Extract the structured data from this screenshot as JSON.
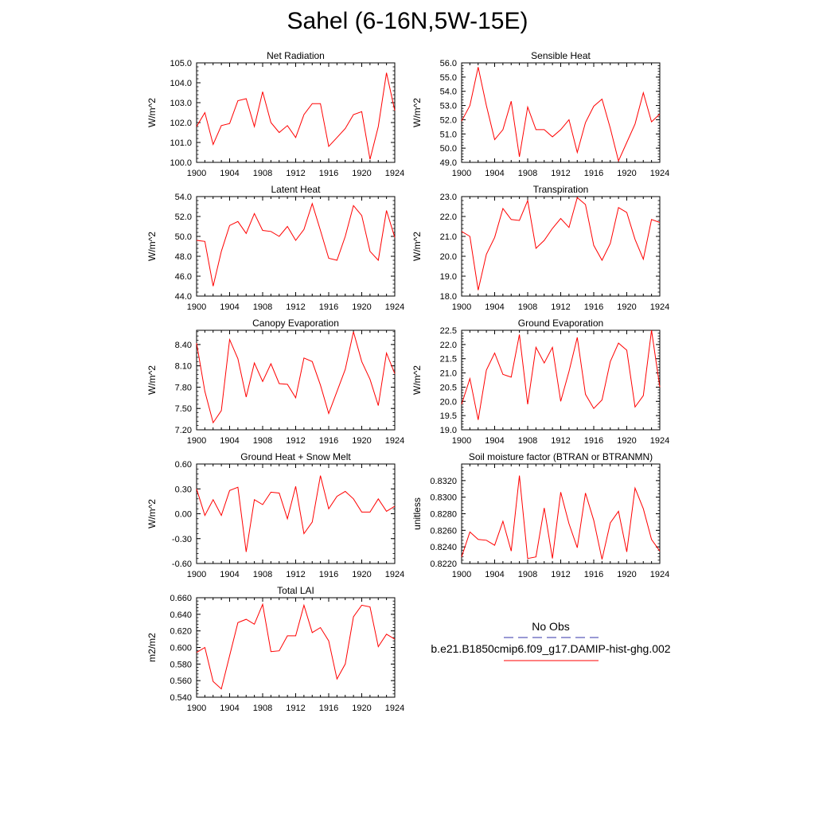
{
  "title": "Sahel (6-16N,5W-15E)",
  "legend": {
    "obs_label": "No Obs",
    "obs_color": "#3333aa",
    "model_label": "b.e21.B1850cmip6.f09_g17.DAMIP-hist-ghg.002",
    "model_color": "#ff0000"
  },
  "x_ticks": [
    "1900",
    "1904",
    "1908",
    "1912",
    "1916",
    "1920",
    "1924"
  ],
  "chart_data": [
    {
      "type": "line",
      "title": "Net Radiation",
      "ylabel": "W/m^2",
      "xlim": [
        1900,
        1924
      ],
      "ylim": [
        100.0,
        105.0
      ],
      "y_ticks": [
        "100.0",
        "101.0",
        "102.0",
        "103.0",
        "104.0",
        "105.0"
      ],
      "x": [
        1900,
        1901,
        1902,
        1903,
        1904,
        1905,
        1906,
        1907,
        1908,
        1909,
        1910,
        1911,
        1912,
        1913,
        1914,
        1915,
        1916,
        1917,
        1918,
        1919,
        1920,
        1921,
        1922,
        1923,
        1924
      ],
      "series": [
        {
          "name": "b.e21.B1850cmip6.f09_g17.DAMIP-hist-ghg.002",
          "values": [
            101.8,
            102.5,
            100.9,
            101.85,
            101.95,
            103.1,
            103.2,
            101.8,
            103.55,
            102.0,
            101.5,
            101.85,
            101.25,
            102.4,
            102.95,
            102.95,
            100.8,
            101.25,
            101.7,
            102.4,
            102.55,
            100.15,
            101.8,
            104.5,
            102.6
          ]
        }
      ]
    },
    {
      "type": "line",
      "title": "Sensible Heat",
      "ylabel": "W/m^2",
      "xlim": [
        1900,
        1924
      ],
      "ylim": [
        49.0,
        56.0
      ],
      "y_ticks": [
        "49.0",
        "50.0",
        "51.0",
        "52.0",
        "53.0",
        "54.0",
        "55.0",
        "56.0"
      ],
      "x": [
        1900,
        1901,
        1902,
        1903,
        1904,
        1905,
        1906,
        1907,
        1908,
        1909,
        1910,
        1911,
        1912,
        1913,
        1914,
        1915,
        1916,
        1917,
        1918,
        1919,
        1920,
        1921,
        1922,
        1923,
        1924
      ],
      "series": [
        {
          "name": "b.e21.B1850cmip6.f09_g17.DAMIP-hist-ghg.002",
          "values": [
            51.9,
            53.0,
            55.7,
            53.0,
            50.6,
            51.3,
            53.3,
            49.4,
            52.9,
            51.3,
            51.3,
            50.8,
            51.3,
            52.0,
            49.7,
            51.8,
            52.95,
            53.45,
            51.4,
            49.1,
            50.4,
            51.7,
            53.9,
            51.85,
            52.4
          ]
        }
      ]
    },
    {
      "type": "line",
      "title": "Latent Heat",
      "ylabel": "W/m^2",
      "xlim": [
        1900,
        1924
      ],
      "ylim": [
        44.0,
        54.0
      ],
      "y_ticks": [
        "44.0",
        "46.0",
        "48.0",
        "50.0",
        "52.0",
        "54.0"
      ],
      "x": [
        1900,
        1901,
        1902,
        1903,
        1904,
        1905,
        1906,
        1907,
        1908,
        1909,
        1910,
        1911,
        1912,
        1913,
        1914,
        1915,
        1916,
        1917,
        1918,
        1919,
        1920,
        1921,
        1922,
        1923,
        1924
      ],
      "series": [
        {
          "name": "b.e21.B1850cmip6.f09_g17.DAMIP-hist-ghg.002",
          "values": [
            49.6,
            49.5,
            45.0,
            48.5,
            51.1,
            51.5,
            50.3,
            52.3,
            50.6,
            50.5,
            50.0,
            51.0,
            49.6,
            50.7,
            53.3,
            50.6,
            47.8,
            47.6,
            50.0,
            53.1,
            52.1,
            48.5,
            47.6,
            52.6,
            49.9
          ]
        }
      ]
    },
    {
      "type": "line",
      "title": "Transpiration",
      "ylabel": "W/m^2",
      "xlim": [
        1900,
        1924
      ],
      "ylim": [
        18.0,
        23.0
      ],
      "y_ticks": [
        "18.0",
        "19.0",
        "20.0",
        "21.0",
        "22.0",
        "23.0"
      ],
      "x": [
        1900,
        1901,
        1902,
        1903,
        1904,
        1905,
        1906,
        1907,
        1908,
        1909,
        1910,
        1911,
        1912,
        1913,
        1914,
        1915,
        1916,
        1917,
        1918,
        1919,
        1920,
        1921,
        1922,
        1923,
        1924
      ],
      "series": [
        {
          "name": "b.e21.B1850cmip6.f09_g17.DAMIP-hist-ghg.002",
          "values": [
            21.25,
            21.0,
            18.3,
            20.1,
            20.95,
            22.4,
            21.85,
            21.8,
            22.8,
            20.4,
            20.8,
            21.4,
            21.9,
            21.45,
            22.95,
            22.6,
            20.55,
            19.8,
            20.65,
            22.45,
            22.2,
            20.85,
            19.85,
            21.85,
            21.7
          ]
        }
      ]
    },
    {
      "type": "line",
      "title": "Canopy Evaporation",
      "ylabel": "W/m^2",
      "xlim": [
        1900,
        1924
      ],
      "ylim": [
        7.2,
        8.6
      ],
      "y_ticks": [
        "7.20",
        "7.50",
        "7.80",
        "8.10",
        "8.40"
      ],
      "x": [
        1900,
        1901,
        1902,
        1903,
        1904,
        1905,
        1906,
        1907,
        1908,
        1909,
        1910,
        1911,
        1912,
        1913,
        1914,
        1915,
        1916,
        1917,
        1918,
        1919,
        1920,
        1921,
        1922,
        1923,
        1924
      ],
      "series": [
        {
          "name": "b.e21.B1850cmip6.f09_g17.DAMIP-hist-ghg.002",
          "values": [
            8.42,
            7.74,
            7.3,
            7.47,
            8.47,
            8.2,
            7.66,
            8.14,
            7.88,
            8.13,
            7.85,
            7.84,
            7.65,
            8.21,
            8.16,
            7.83,
            7.43,
            7.74,
            8.05,
            8.58,
            8.16,
            7.91,
            7.54,
            8.28,
            7.99
          ]
        }
      ]
    },
    {
      "type": "line",
      "title": "Ground Evaporation",
      "ylabel": "W/m^2",
      "xlim": [
        1900,
        1924
      ],
      "ylim": [
        19.0,
        22.5
      ],
      "y_ticks": [
        "19.0",
        "19.5",
        "20.0",
        "20.5",
        "21.0",
        "21.5",
        "22.0",
        "22.5"
      ],
      "x": [
        1900,
        1901,
        1902,
        1903,
        1904,
        1905,
        1906,
        1907,
        1908,
        1909,
        1910,
        1911,
        1912,
        1913,
        1914,
        1915,
        1916,
        1917,
        1918,
        1919,
        1920,
        1921,
        1922,
        1923,
        1924
      ],
      "series": [
        {
          "name": "b.e21.B1850cmip6.f09_g17.DAMIP-hist-ghg.002",
          "values": [
            19.9,
            20.8,
            19.35,
            21.1,
            21.7,
            20.95,
            20.85,
            22.35,
            19.9,
            21.9,
            21.35,
            21.9,
            20.0,
            21.05,
            22.25,
            20.25,
            19.75,
            20.05,
            21.4,
            22.05,
            21.8,
            19.8,
            20.2,
            22.5,
            20.5
          ]
        }
      ]
    },
    {
      "type": "line",
      "title": "Ground Heat + Snow Melt",
      "ylabel": "W/m^2",
      "xlim": [
        1900,
        1924
      ],
      "ylim": [
        -0.6,
        0.6
      ],
      "y_ticks": [
        "-0.60",
        "-0.30",
        "0.00",
        "0.30",
        "0.60"
      ],
      "x": [
        1900,
        1901,
        1902,
        1903,
        1904,
        1905,
        1906,
        1907,
        1908,
        1909,
        1910,
        1911,
        1912,
        1913,
        1914,
        1915,
        1916,
        1917,
        1918,
        1919,
        1920,
        1921,
        1922,
        1923,
        1924
      ],
      "series": [
        {
          "name": "b.e21.B1850cmip6.f09_g17.DAMIP-hist-ghg.002",
          "values": [
            0.3,
            -0.02,
            0.17,
            -0.02,
            0.28,
            0.32,
            -0.46,
            0.17,
            0.11,
            0.26,
            0.25,
            -0.06,
            0.33,
            -0.24,
            -0.1,
            0.46,
            0.06,
            0.21,
            0.27,
            0.18,
            0.02,
            0.02,
            0.18,
            0.03,
            0.09
          ]
        }
      ]
    },
    {
      "type": "line",
      "title": "Soil moisture factor (BTRAN or BTRANMN)",
      "ylabel": "unitless",
      "xlim": [
        1900,
        1924
      ],
      "ylim": [
        0.822,
        0.834
      ],
      "y_ticks": [
        "0.8220",
        "0.8240",
        "0.8260",
        "0.8280",
        "0.8300",
        "0.8320"
      ],
      "x": [
        1900,
        1901,
        1902,
        1903,
        1904,
        1905,
        1906,
        1907,
        1908,
        1909,
        1910,
        1911,
        1912,
        1913,
        1914,
        1915,
        1916,
        1917,
        1918,
        1919,
        1920,
        1921,
        1922,
        1923,
        1924
      ],
      "series": [
        {
          "name": "b.e21.B1850cmip6.f09_g17.DAMIP-hist-ghg.002",
          "values": [
            0.8228,
            0.8258,
            0.8249,
            0.8248,
            0.8242,
            0.8271,
            0.8235,
            0.8326,
            0.8226,
            0.8228,
            0.8287,
            0.8226,
            0.8306,
            0.8268,
            0.8239,
            0.8305,
            0.8272,
            0.8225,
            0.8269,
            0.8283,
            0.8234,
            0.8311,
            0.8286,
            0.8249,
            0.8235
          ]
        }
      ]
    },
    {
      "type": "line",
      "title": "Total LAI",
      "ylabel": "m2/m2",
      "xlim": [
        1900,
        1924
      ],
      "ylim": [
        0.54,
        0.66
      ],
      "y_ticks": [
        "0.540",
        "0.560",
        "0.580",
        "0.600",
        "0.620",
        "0.640",
        "0.660"
      ],
      "x": [
        1900,
        1901,
        1902,
        1903,
        1904,
        1905,
        1906,
        1907,
        1908,
        1909,
        1910,
        1911,
        1912,
        1913,
        1914,
        1915,
        1916,
        1917,
        1918,
        1919,
        1920,
        1921,
        1922,
        1923,
        1924
      ],
      "series": [
        {
          "name": "b.e21.B1850cmip6.f09_g17.DAMIP-hist-ghg.002",
          "values": [
            0.594,
            0.6,
            0.559,
            0.55,
            0.59,
            0.63,
            0.634,
            0.628,
            0.652,
            0.595,
            0.596,
            0.614,
            0.614,
            0.651,
            0.618,
            0.624,
            0.608,
            0.562,
            0.58,
            0.637,
            0.651,
            0.649,
            0.601,
            0.616,
            0.61
          ]
        }
      ]
    }
  ]
}
